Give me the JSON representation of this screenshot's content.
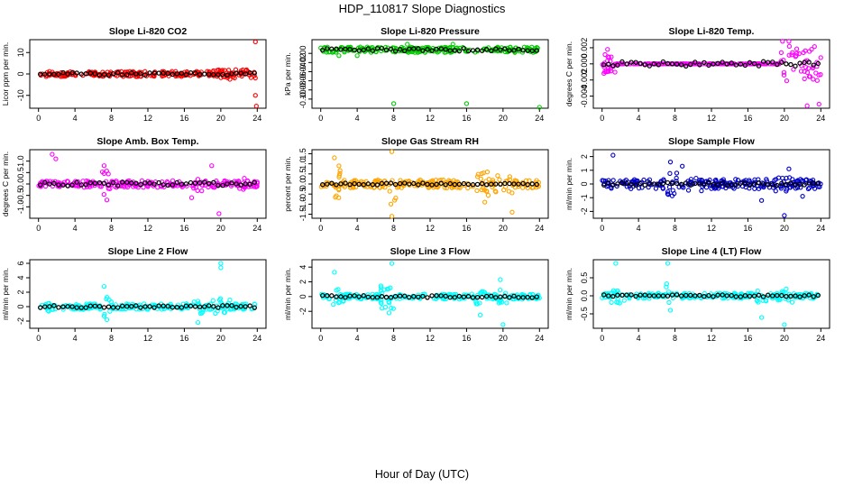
{
  "figure": {
    "title": "HDP_110817  Slope Diagnostics",
    "xlabel": "Hour of Day (UTC)",
    "xticks": [
      0,
      4,
      8,
      12,
      16,
      20,
      24
    ]
  },
  "chart_data": [
    {
      "type": "scatter",
      "title": "Slope Li-820 CO2",
      "ylabel": "Licor ppm per min.",
      "ylim": [
        -16,
        16
      ],
      "yticks": [
        -10,
        0,
        10
      ],
      "ytick_labels": [
        "-10",
        "0",
        "10"
      ],
      "color": "#ff0000",
      "spread": 1.2,
      "bursts": [
        [
          19.5,
          24,
          2.0
        ]
      ],
      "outliers": [
        [
          7.8,
          -1
        ],
        [
          19.2,
          1.5
        ],
        [
          21,
          -2.5
        ],
        [
          23.8,
          15
        ],
        [
          23.8,
          -10
        ],
        [
          23.9,
          -15
        ]
      ],
      "ref_spread": 0.6
    },
    {
      "type": "scatter",
      "title": "Slope Li-820 Pressure",
      "ylabel": "kPa per min.",
      "ylim": [
        -0.12,
        0.03
      ],
      "yticks": [
        -0.1,
        -0.08,
        -0.06,
        -0.04,
        -0.02,
        0.0
      ],
      "ytick_labels": [
        "-0.10",
        "-0.08",
        "-0.06",
        "-0.04",
        "-0.02",
        "0.00"
      ],
      "color": "#00cc00",
      "center": 0.008,
      "spread": 0.006,
      "bursts": [],
      "outliers": [
        [
          2,
          -0.005
        ],
        [
          4,
          -0.005
        ],
        [
          8,
          -0.11
        ],
        [
          16,
          -0.11
        ],
        [
          24,
          -0.118
        ],
        [
          9.5,
          0.02
        ],
        [
          14.5,
          0.02
        ]
      ],
      "ref_spread": 0.003
    },
    {
      "type": "scatter",
      "title": "Slope Li-820 Temp.",
      "ylabel": "degrees C per min.",
      "ylim": [
        -0.0055,
        0.003
      ],
      "yticks": [
        -0.004,
        -0.002,
        0.0,
        0.002
      ],
      "ytick_labels": [
        "-0.004",
        "-0.002",
        "0.000",
        "0.002"
      ],
      "color": "#ff00ff",
      "spread": 0.0,
      "bursts": [
        [
          0,
          1.5,
          0.0012
        ],
        [
          19.5,
          24,
          0.0022
        ]
      ],
      "outliers": [
        [
          19.8,
          0.0028
        ],
        [
          20.5,
          0.0028
        ],
        [
          22.5,
          -0.0052
        ],
        [
          23.8,
          -0.005
        ],
        [
          0.6,
          0.0018
        ]
      ],
      "ref_spread": 0.0003
    },
    {
      "type": "scatter",
      "title": "Slope Amb. Box Temp.",
      "ylabel": "degrees C per min.",
      "ylim": [
        -1.5,
        1.5
      ],
      "yticks": [
        -1.0,
        -0.5,
        0.0,
        0.5,
        1.0
      ],
      "ytick_labels": [
        "-1.0",
        "-0.5",
        "0.0",
        "0.5",
        "1.0"
      ],
      "color": "#ff00ff",
      "spread": 0.15,
      "bursts": [
        [
          7,
          8,
          0.6
        ],
        [
          17,
          18,
          0.3
        ],
        [
          22,
          23,
          0.25
        ]
      ],
      "outliers": [
        [
          1.5,
          1.3
        ],
        [
          1.9,
          1.1
        ],
        [
          7.2,
          0.8
        ],
        [
          19.8,
          -1.3
        ],
        [
          19,
          0.8
        ],
        [
          16.8,
          -0.6
        ],
        [
          7.5,
          -0.7
        ]
      ],
      "ref_spread": 0.08
    },
    {
      "type": "scatter",
      "title": "Slope Gas Stream RH",
      "ylabel": "percent per min.",
      "ylim": [
        -1.7,
        1.7
      ],
      "yticks": [
        -1.5,
        -1.0,
        -0.5,
        0.0,
        0.5,
        1.0,
        1.5
      ],
      "ytick_labels": [
        "-1.5",
        "-1.0",
        "-0.5",
        "0.0",
        "0.5",
        "1.0",
        "1.5"
      ],
      "color": "#ffa500",
      "spread": 0.2,
      "bursts": [
        [
          1.5,
          2.2,
          0.8
        ],
        [
          7.5,
          8.3,
          1.0
        ],
        [
          17,
          18.5,
          0.6
        ],
        [
          19,
          21,
          0.5
        ]
      ],
      "outliers": [
        [
          7.8,
          1.6
        ],
        [
          7.8,
          -1.6
        ],
        [
          1.5,
          1.3
        ],
        [
          2,
          0.9
        ],
        [
          18,
          -0.9
        ],
        [
          21,
          -1.4
        ]
      ],
      "ref_spread": 0.05
    },
    {
      "type": "scatter",
      "title": "Slope Sample Flow",
      "ylabel": "ml/min per min.",
      "ylim": [
        -2.5,
        2.5
      ],
      "yticks": [
        -2,
        -1,
        0,
        1,
        2
      ],
      "ytick_labels": [
        "-2",
        "-1",
        "0",
        "1",
        "2"
      ],
      "color": "#0000cc",
      "spread": 0.35,
      "bursts": [
        [
          7,
          8.2,
          0.9
        ],
        [
          9,
          11,
          0.5
        ],
        [
          19,
          21,
          0.7
        ]
      ],
      "outliers": [
        [
          1.2,
          2.1
        ],
        [
          7.5,
          1.6
        ],
        [
          8.8,
          1.3
        ],
        [
          20,
          -2.3
        ],
        [
          17.5,
          -1.2
        ],
        [
          20.5,
          1.1
        ],
        [
          22,
          -0.9
        ]
      ],
      "ref_spread": 0.1
    },
    {
      "type": "scatter",
      "title": "Slope Line 2 Flow",
      "ylabel": "ml/min per min.",
      "ylim": [
        -3,
        6.5
      ],
      "yticks": [
        -2,
        0,
        2,
        4,
        6
      ],
      "ytick_labels": [
        "-2",
        "0",
        "2",
        "4",
        "6"
      ],
      "color": "#00ffff",
      "spread": 0.4,
      "bursts": [
        [
          1,
          2.5,
          0.8
        ],
        [
          7,
          8,
          1.5
        ],
        [
          17,
          18,
          1.0
        ],
        [
          19,
          21,
          1.2
        ]
      ],
      "outliers": [
        [
          20,
          6
        ],
        [
          20,
          5.4
        ],
        [
          7.2,
          2.8
        ],
        [
          17.5,
          -2.2
        ],
        [
          7.5,
          -1.8
        ]
      ],
      "ref_spread": 0.15
    },
    {
      "type": "scatter",
      "title": "Slope Line 3 Flow",
      "ylabel": "ml/min per min.",
      "ylim": [
        -4.3,
        5
      ],
      "yticks": [
        -2,
        0,
        2,
        4
      ],
      "ytick_labels": [
        "-2",
        "0",
        "2",
        "4"
      ],
      "color": "#00ffff",
      "spread": 0.35,
      "bursts": [
        [
          1,
          2.5,
          1.2
        ],
        [
          6.5,
          8,
          1.8
        ],
        [
          17,
          18,
          1.0
        ],
        [
          19.5,
          21,
          1.0
        ]
      ],
      "outliers": [
        [
          1.5,
          3.3
        ],
        [
          7.8,
          4.5
        ],
        [
          19.7,
          2.3
        ],
        [
          20,
          -3.8
        ],
        [
          7.5,
          -2.2
        ],
        [
          17.5,
          -2.5
        ]
      ],
      "ref_spread": 0.15
    },
    {
      "type": "scatter",
      "title": "Slope Line 4 (LT) Flow",
      "ylabel": "ml/min per min.",
      "ylim": [
        -0.9,
        1.0
      ],
      "yticks": [
        -0.5,
        0.0,
        0.5
      ],
      "ytick_labels": [
        "-0.5",
        "0.0",
        "0.5"
      ],
      "color": "#00ffff",
      "spread": 0.07,
      "bursts": [
        [
          1,
          2.5,
          0.2
        ],
        [
          7,
          8,
          0.4
        ],
        [
          17,
          18,
          0.2
        ],
        [
          19,
          21,
          0.2
        ]
      ],
      "outliers": [
        [
          1.5,
          0.9
        ],
        [
          7.2,
          0.9
        ],
        [
          20,
          -0.8
        ],
        [
          17.5,
          -0.6
        ],
        [
          7.5,
          -0.4
        ]
      ],
      "ref_spread": 0.03
    }
  ]
}
